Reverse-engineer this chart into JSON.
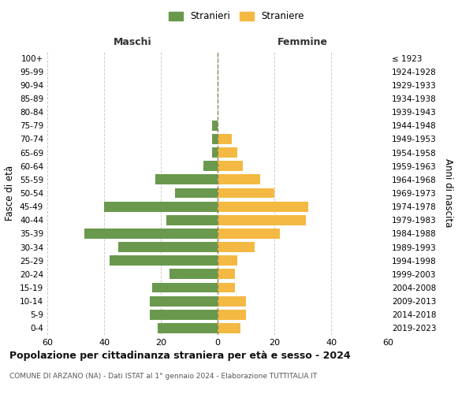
{
  "age_groups": [
    "100+",
    "95-99",
    "90-94",
    "85-89",
    "80-84",
    "75-79",
    "70-74",
    "65-69",
    "60-64",
    "55-59",
    "50-54",
    "45-49",
    "40-44",
    "35-39",
    "30-34",
    "25-29",
    "20-24",
    "15-19",
    "10-14",
    "5-9",
    "0-4"
  ],
  "birth_years": [
    "≤ 1923",
    "1924-1928",
    "1929-1933",
    "1934-1938",
    "1939-1943",
    "1944-1948",
    "1949-1953",
    "1954-1958",
    "1959-1963",
    "1964-1968",
    "1969-1973",
    "1974-1978",
    "1979-1983",
    "1984-1988",
    "1989-1993",
    "1994-1998",
    "1999-2003",
    "2004-2008",
    "2009-2013",
    "2014-2018",
    "2019-2023"
  ],
  "males": [
    0,
    0,
    0,
    0,
    0,
    2,
    2,
    2,
    5,
    22,
    15,
    40,
    18,
    47,
    35,
    38,
    17,
    23,
    24,
    24,
    21
  ],
  "females": [
    0,
    0,
    0,
    0,
    0,
    0,
    5,
    7,
    9,
    15,
    20,
    32,
    31,
    22,
    13,
    7,
    6,
    6,
    10,
    10,
    8
  ],
  "male_color": "#6a994e",
  "female_color": "#f4b942",
  "background_color": "#ffffff",
  "grid_color": "#cccccc",
  "title": "Popolazione per cittadinanza straniera per età e sesso - 2024",
  "subtitle": "COMUNE DI ARZANO (NA) - Dati ISTAT al 1° gennaio 2024 - Elaborazione TUTTITALIA.IT",
  "xlabel_left": "Maschi",
  "xlabel_right": "Femmine",
  "ylabel_left": "Fasce di età",
  "ylabel_right": "Anni di nascita",
  "xlim": 60,
  "legend_stranieri": "Stranieri",
  "legend_straniere": "Straniere"
}
